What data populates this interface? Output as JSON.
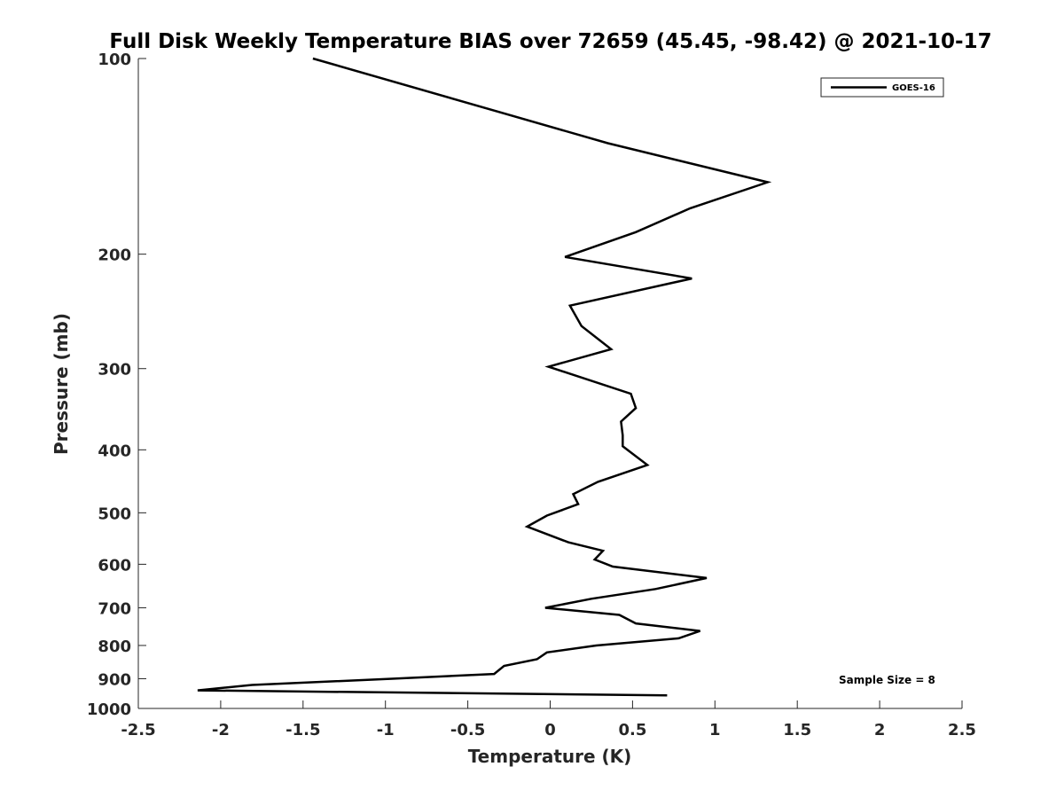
{
  "chart_data": {
    "type": "line",
    "title": "Full Disk Weekly Temperature BIAS over 72659 (45.45, -98.42) @ 2021-10-17",
    "xlabel": "Temperature (K)",
    "ylabel": "Pressure (mb)",
    "xlim": [
      -2.5,
      2.5
    ],
    "ylim": [
      100,
      1000
    ],
    "y_scale": "log",
    "y_reversed": true,
    "grid": false,
    "legend_position": "top-right",
    "x_ticks": [
      -2.5,
      -2,
      -1.5,
      -1,
      -0.5,
      0,
      0.5,
      1,
      1.5,
      2,
      2.5
    ],
    "x_tick_labels": [
      "-2.5",
      "-2",
      "-1.5",
      "-1",
      "-0.5",
      "0",
      "0.5",
      "1",
      "1.5",
      "2",
      "2.5"
    ],
    "y_ticks": [
      100,
      200,
      300,
      400,
      500,
      600,
      700,
      800,
      900,
      1000
    ],
    "y_tick_labels": [
      "100",
      "200",
      "300",
      "400",
      "500",
      "600",
      "700",
      "800",
      "900",
      "1000"
    ],
    "annotation": "Sample Size = 8",
    "series": [
      {
        "name": "GOES-16",
        "color": "#000000",
        "points": [
          [
            -1.44,
            100
          ],
          [
            0.35,
            135
          ],
          [
            1.32,
            155
          ],
          [
            0.85,
            170
          ],
          [
            0.52,
            185
          ],
          [
            0.09,
            202
          ],
          [
            0.86,
            218
          ],
          [
            0.12,
            240
          ],
          [
            0.19,
            258
          ],
          [
            0.37,
            280
          ],
          [
            -0.01,
            298
          ],
          [
            0.49,
            328
          ],
          [
            0.52,
            345
          ],
          [
            0.43,
            362
          ],
          [
            0.44,
            380
          ],
          [
            0.44,
            395
          ],
          [
            0.59,
            422
          ],
          [
            0.29,
            448
          ],
          [
            0.14,
            468
          ],
          [
            0.17,
            485
          ],
          [
            -0.02,
            505
          ],
          [
            -0.14,
            525
          ],
          [
            0.11,
            555
          ],
          [
            0.32,
            572
          ],
          [
            0.27,
            590
          ],
          [
            0.38,
            605
          ],
          [
            0.95,
            630
          ],
          [
            0.64,
            655
          ],
          [
            0.25,
            678
          ],
          [
            -0.03,
            700
          ],
          [
            0.42,
            718
          ],
          [
            0.52,
            740
          ],
          [
            0.91,
            760
          ],
          [
            0.78,
            780
          ],
          [
            0.28,
            800
          ],
          [
            -0.02,
            820
          ],
          [
            -0.08,
            840
          ],
          [
            -0.28,
            860
          ],
          [
            -0.34,
            885
          ],
          [
            -0.96,
            900
          ],
          [
            -1.81,
            920
          ],
          [
            -2.14,
            938
          ],
          [
            0.71,
            955
          ]
        ]
      }
    ]
  }
}
